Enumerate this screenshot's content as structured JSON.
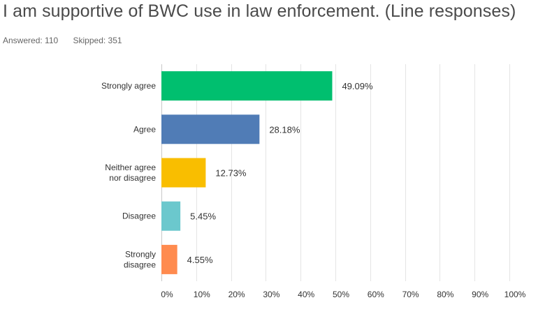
{
  "title": "I am supportive of BWC use in law enforcement. (Line responses)",
  "meta": {
    "answered_label": "Answered: 110",
    "skipped_label": "Skipped: 351"
  },
  "chart_data": {
    "type": "bar",
    "orientation": "horizontal",
    "categories": [
      [
        "Strongly agree"
      ],
      [
        "Agree"
      ],
      [
        "Neither agree",
        "nor disagree"
      ],
      [
        "Disagree"
      ],
      [
        "Strongly",
        "disagree"
      ]
    ],
    "values": [
      49.09,
      28.18,
      12.73,
      5.45,
      4.55
    ],
    "value_labels": [
      "49.09%",
      "28.18%",
      "12.73%",
      "5.45%",
      "4.55%"
    ],
    "colors": [
      "#00bf6f",
      "#507cb6",
      "#f9be00",
      "#6bc8cd",
      "#ff8b4f"
    ],
    "xlim": [
      0,
      100
    ],
    "xticks": [
      0,
      10,
      20,
      30,
      40,
      50,
      60,
      70,
      80,
      90,
      100
    ],
    "xtick_labels": [
      "0%",
      "10%",
      "20%",
      "30%",
      "40%",
      "50%",
      "60%",
      "70%",
      "80%",
      "90%",
      "100%"
    ],
    "grid": true
  }
}
